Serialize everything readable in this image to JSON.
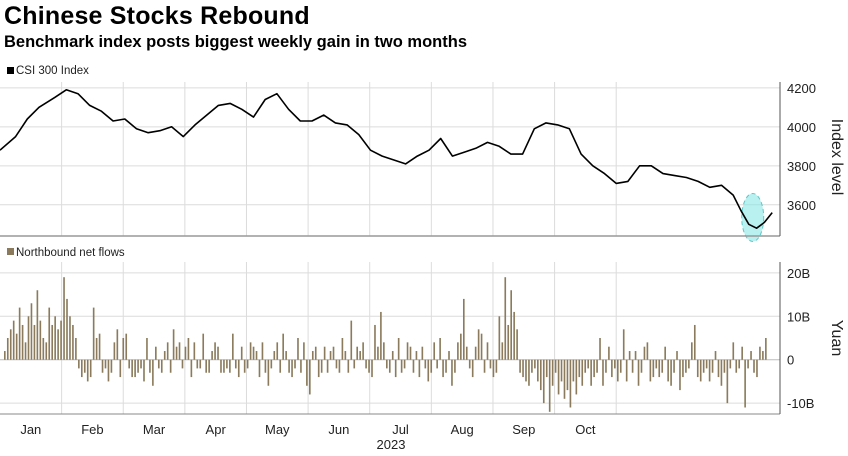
{
  "title": "Chinese Stocks Rebound",
  "subtitle": "Benchmark index posts biggest weekly gain in two months",
  "chart_data": [
    {
      "type": "line",
      "legend": "CSI 300 Index",
      "ylabel": "Index level",
      "ylim": [
        3440,
        4230
      ],
      "yticks": [
        3600,
        3800,
        4000,
        4200
      ],
      "grid": true,
      "highlight": {
        "x": 0.965,
        "y": 3535,
        "color": "#7fe3e3"
      },
      "series": [
        {
          "name": "CSI 300 Index",
          "x": [
            0,
            0.02,
            0.035,
            0.05,
            0.07,
            0.085,
            0.1,
            0.115,
            0.13,
            0.145,
            0.16,
            0.175,
            0.19,
            0.205,
            0.22,
            0.235,
            0.25,
            0.265,
            0.28,
            0.295,
            0.31,
            0.325,
            0.34,
            0.355,
            0.37,
            0.385,
            0.4,
            0.415,
            0.43,
            0.445,
            0.46,
            0.475,
            0.49,
            0.505,
            0.52,
            0.535,
            0.55,
            0.565,
            0.58,
            0.595,
            0.61,
            0.625,
            0.64,
            0.655,
            0.67,
            0.685,
            0.7,
            0.715,
            0.73,
            0.745,
            0.76,
            0.775,
            0.79,
            0.805,
            0.82,
            0.835,
            0.85,
            0.865,
            0.88,
            0.895,
            0.91,
            0.925,
            0.94,
            0.95,
            0.96,
            0.97,
            0.98,
            0.99
          ],
          "values": [
            3880,
            3950,
            4040,
            4100,
            4150,
            4190,
            4170,
            4110,
            4080,
            4030,
            4040,
            3990,
            3970,
            3980,
            4000,
            3950,
            4010,
            4060,
            4110,
            4120,
            4090,
            4050,
            4140,
            4170,
            4090,
            4030,
            4030,
            4060,
            4020,
            4010,
            3960,
            3880,
            3850,
            3830,
            3810,
            3850,
            3880,
            3940,
            3850,
            3870,
            3890,
            3920,
            3900,
            3860,
            3860,
            3990,
            4020,
            4010,
            3990,
            3860,
            3800,
            3760,
            3710,
            3720,
            3800,
            3800,
            3760,
            3750,
            3740,
            3720,
            3690,
            3700,
            3650,
            3570,
            3500,
            3480,
            3510,
            3560
          ]
        }
      ]
    },
    {
      "type": "bar",
      "legend": "Northbound net flows",
      "ylabel": "Yuan",
      "ylim": [
        -12.5,
        22.5
      ],
      "yticks": [
        -10,
        0,
        10,
        20
      ],
      "ytick_labels": [
        "-10B",
        "0",
        "10B",
        "20B"
      ],
      "grid": true,
      "color": "#8b7b5c",
      "series": [
        {
          "name": "Northbound net flows",
          "values": [
            2,
            5,
            7,
            9,
            6,
            12,
            8,
            4,
            10,
            13,
            8,
            16,
            9,
            5,
            4,
            12,
            8,
            10,
            7,
            9,
            19,
            14,
            10,
            8,
            5,
            -2,
            -4,
            -3,
            -5,
            -4,
            12,
            5,
            6,
            -3,
            -2,
            -5,
            -3,
            4,
            7,
            -4,
            5,
            6,
            -2,
            -4,
            -4,
            -3,
            -2,
            -5,
            5,
            -3,
            -6,
            3,
            -2,
            -3,
            2,
            4,
            -3,
            7,
            3,
            4,
            -2,
            3,
            5,
            -4,
            4,
            -2,
            -2,
            6,
            -3,
            -3,
            2,
            4,
            3,
            -3,
            -3,
            -2,
            -3,
            6,
            -2,
            -4,
            3,
            -3,
            -2,
            4,
            3,
            2,
            -4,
            4,
            -3,
            -6,
            -2,
            2,
            4,
            -3,
            6,
            2,
            -3,
            -4,
            -2,
            5,
            -3,
            4,
            -6,
            -8,
            2,
            3,
            -4,
            -3,
            3,
            -3,
            2,
            3,
            -2,
            -3,
            5,
            2,
            -3,
            9,
            -2,
            3,
            2,
            4,
            -2,
            -3,
            -4,
            8,
            3,
            11,
            4,
            -2,
            -3,
            2,
            -4,
            5,
            -3,
            -2,
            4,
            3,
            -3,
            2,
            -4,
            3,
            -2,
            -5,
            -3,
            4,
            -2,
            5,
            -4,
            -3,
            2,
            -6,
            -3,
            4,
            6,
            14,
            3,
            -2,
            -4,
            3,
            7,
            6,
            -3,
            4,
            -2,
            -4,
            -3,
            10,
            4,
            19,
            8,
            16,
            11,
            7,
            -3,
            -4,
            -5,
            -6,
            -3,
            -2,
            -5,
            -7,
            -10,
            -4,
            -12,
            -6,
            -3,
            -8,
            -5,
            -9,
            -7,
            -11,
            -5,
            -8,
            -4,
            -6,
            -3,
            -2,
            -6,
            -4,
            -3,
            5,
            -6,
            -3,
            3,
            -4,
            -2,
            -5,
            -3,
            7,
            -5,
            2,
            -3,
            2,
            -6,
            -3,
            3,
            4,
            -5,
            -4,
            -2,
            -4,
            -3,
            3,
            -5,
            -6,
            -3,
            2,
            -7,
            -4,
            -3,
            -2,
            4,
            8,
            -4,
            -5,
            -3,
            -2,
            -5,
            -3,
            2,
            -4,
            -6,
            -3,
            -10,
            -2,
            4,
            -3,
            -2,
            3,
            -11,
            -2,
            2,
            -3,
            -4,
            3,
            2,
            5
          ]
        }
      ]
    }
  ],
  "x_axis": {
    "months": [
      "Jan",
      "Feb",
      "Mar",
      "Apr",
      "May",
      "Jun",
      "Jul",
      "Aug",
      "Sep",
      "Oct"
    ],
    "year": "2023"
  }
}
